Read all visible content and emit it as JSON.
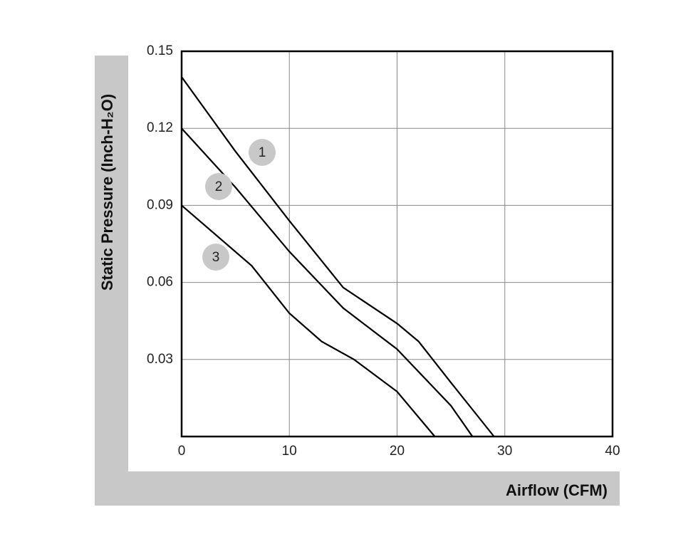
{
  "chart_data": {
    "type": "line",
    "xlabel": "Airflow (CFM)",
    "ylabel": "Static Pressure (Inch-H₂O)",
    "xlim": [
      0,
      40
    ],
    "xticks": [
      0,
      10,
      20,
      30,
      40
    ],
    "ylim": [
      0,
      0.15
    ],
    "yticks": [
      0.03,
      0.06,
      0.09,
      0.12,
      0.15
    ],
    "grid": true,
    "series": [
      {
        "name": "1",
        "color": "#000000",
        "x": [
          0,
          5,
          10,
          15,
          20,
          22,
          25,
          29
        ],
        "values": [
          0.14,
          0.111,
          0.084,
          0.058,
          0.044,
          0.037,
          0.021,
          0
        ]
      },
      {
        "name": "2",
        "color": "#000000",
        "x": [
          0,
          5,
          10,
          15,
          20,
          25,
          27
        ],
        "values": [
          0.12,
          0.097,
          0.072,
          0.05,
          0.034,
          0.012,
          0
        ]
      },
      {
        "name": "3",
        "color": "#000000",
        "x": [
          0,
          6.5,
          10,
          13,
          16,
          20,
          23.5
        ],
        "values": [
          0.09,
          0.0665,
          0.048,
          0.037,
          0.03,
          0.0175,
          0
        ]
      }
    ]
  }
}
